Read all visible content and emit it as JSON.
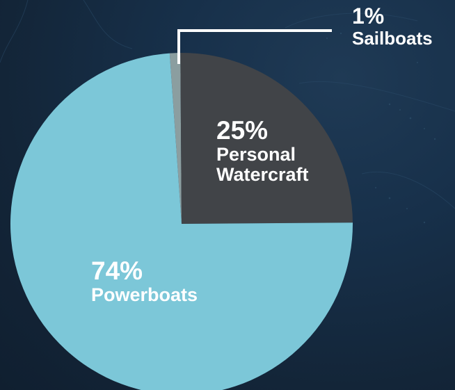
{
  "chart_data": {
    "type": "pie",
    "slices": [
      {
        "label": "Sailboats",
        "value": 1,
        "value_text": "1%",
        "color": "#8b9ea0"
      },
      {
        "label": "Personal Watercraft",
        "label_lines": [
          "Personal",
          "Watercraft"
        ],
        "value": 25,
        "value_text": "25%",
        "color": "#414448"
      },
      {
        "label": "Powerboats",
        "value": 74,
        "value_text": "74%",
        "color": "#7cc7d8"
      }
    ],
    "start_angle_deg": -4,
    "direction": "clockwise",
    "background": "#15283f",
    "label_color": "#ffffff",
    "leader_line_color": "#ffffff"
  }
}
